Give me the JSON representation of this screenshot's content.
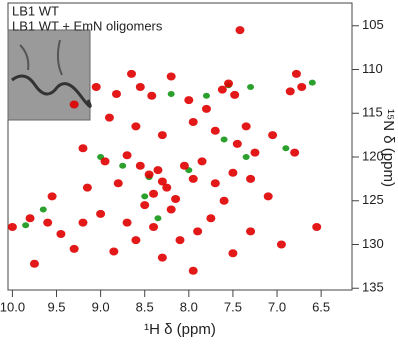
{
  "chart_data": {
    "type": "scatter",
    "xlabel": "¹H δ (ppm)",
    "ylabel": "¹⁵N δ (ppm)",
    "xlim": [
      10.05,
      6.15
    ],
    "ylim": [
      102.4,
      135.2
    ],
    "xticks": [
      {
        "value": 10,
        "label": "10.0"
      },
      9.5,
      {
        "value": 9,
        "label": "9.0"
      },
      8.5,
      {
        "value": 8,
        "label": "8.0"
      },
      7.5,
      {
        "value": 7,
        "label": "7.0"
      },
      6.5
    ],
    "yticks": [
      105,
      110,
      115,
      120,
      125,
      130,
      135
    ],
    "y_axis_side": "right",
    "legend": "top-left",
    "series": [
      {
        "name": "LB1 WT",
        "color": "#2ca02c",
        "x": [
          7.3,
          6.6,
          8.75,
          9.65,
          7.8,
          8.0,
          8.2,
          9.0,
          7.35,
          6.9,
          8.5,
          7.6,
          8.35,
          9.85,
          8.45,
          7.55
        ],
        "values": [
          112.0,
          111.5,
          121.0,
          126.0,
          113.0,
          121.5,
          112.8,
          120.0,
          120.0,
          119.0,
          124.5,
          118.0,
          127.0,
          127.8,
          122.3,
          111.8
        ]
      },
      {
        "name": "LB1 WT + EmN oligomers",
        "color": "#e00000",
        "x": [
          7.42,
          6.78,
          6.72,
          6.85,
          7.55,
          7.62,
          7.48,
          8.55,
          8.42,
          8.82,
          9.05,
          8.65,
          8.2,
          8.0,
          7.8,
          9.3,
          8.9,
          8.6,
          8.3,
          7.95,
          7.7,
          7.45,
          7.35,
          9.2,
          8.95,
          8.7,
          8.55,
          8.45,
          8.35,
          8.3,
          8.25,
          8.4,
          8.15,
          8.5,
          8.2,
          8.05,
          7.95,
          7.85,
          7.7,
          7.6,
          7.5,
          7.3,
          7.25,
          7.1,
          7.75,
          7.9,
          8.1,
          8.4,
          8.7,
          9.0,
          9.2,
          9.45,
          9.6,
          9.8,
          10.0,
          9.75,
          9.3,
          8.85,
          8.6,
          8.3,
          7.95,
          7.5,
          7.3,
          6.95,
          6.55,
          9.55,
          9.15,
          8.8,
          6.8,
          7.05
        ],
        "values": [
          105.5,
          110.5,
          112.0,
          112.5,
          111.6,
          112.3,
          112.9,
          112.0,
          113.0,
          112.8,
          112.0,
          110.5,
          110.8,
          113.5,
          114.5,
          114.0,
          115.5,
          116.5,
          117.5,
          116.0,
          117.0,
          118.5,
          116.5,
          119.0,
          120.5,
          119.8,
          121.0,
          122.0,
          121.5,
          122.8,
          123.5,
          124.2,
          124.8,
          125.5,
          126.0,
          121.0,
          122.5,
          120.5,
          123.0,
          125.0,
          121.8,
          122.5,
          119.5,
          124.5,
          127.0,
          128.5,
          129.5,
          128.0,
          127.5,
          126.5,
          127.5,
          128.8,
          127.5,
          127.0,
          128.0,
          132.2,
          130.5,
          130.8,
          129.5,
          131.5,
          133.0,
          131.0,
          128.5,
          130.0,
          128.0,
          124.5,
          123.5,
          123.0,
          119.5,
          117.5
        ]
      }
    ]
  }
}
